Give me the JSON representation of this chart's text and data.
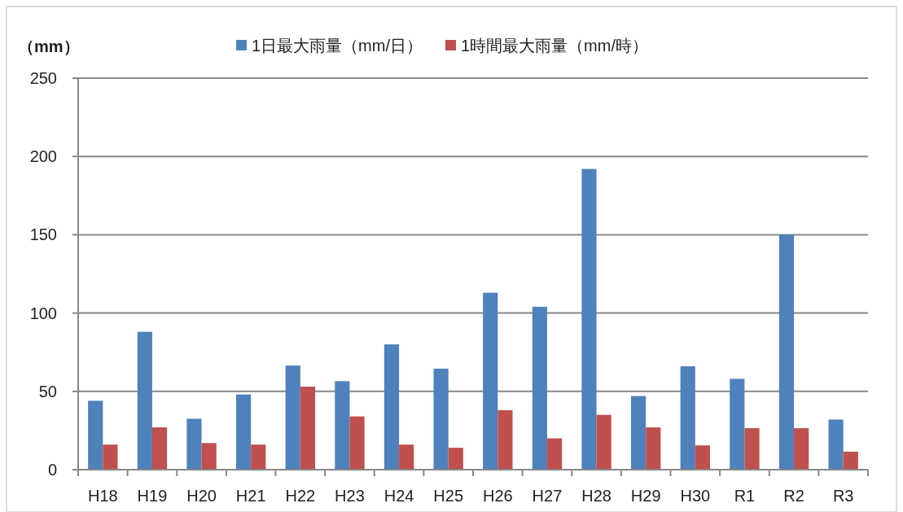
{
  "chart_data": {
    "type": "bar",
    "ylabel": "（mm）",
    "categories": [
      "H18",
      "H19",
      "H20",
      "H21",
      "H22",
      "H23",
      "H24",
      "H25",
      "H26",
      "H27",
      "H28",
      "H29",
      "H30",
      "R1",
      "R2",
      "R3"
    ],
    "series": [
      {
        "name": "1日最大雨量（mm/日）",
        "color": "#4f81bd",
        "values": [
          44,
          88,
          32.5,
          48,
          66.5,
          56.5,
          80,
          64.5,
          113,
          104,
          192,
          47,
          66,
          58,
          150,
          32
        ]
      },
      {
        "name": "1時間最大雨量（mm/時）",
        "color": "#c0504d",
        "values": [
          16,
          27,
          17,
          16,
          53,
          34,
          16,
          14,
          38,
          20,
          35,
          27,
          15.5,
          26.5,
          26.5,
          11.5
        ]
      }
    ],
    "ylim": [
      0,
      250
    ],
    "yticks": [
      0,
      50,
      100,
      150,
      200,
      250
    ],
    "grid": "y",
    "legend": "top"
  }
}
